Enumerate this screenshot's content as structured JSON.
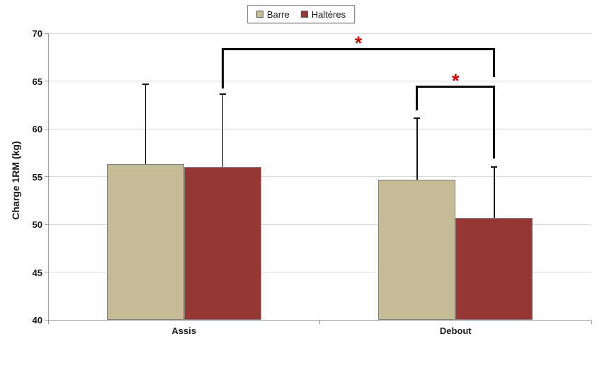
{
  "chart_data": {
    "type": "bar",
    "title": "",
    "categories": [
      "Assis",
      "Debout"
    ],
    "series": [
      {
        "name": "Barre",
        "color": "#C4BD97",
        "values": [
          56.3,
          54.7
        ],
        "error_up": [
          8.4,
          6.4
        ]
      },
      {
        "name": "Haltères",
        "color": "#953735",
        "values": [
          56.0,
          50.7
        ],
        "error_up": [
          7.6,
          5.3
        ]
      }
    ],
    "xlabel": "",
    "ylabel": "Charge 1RM (kg)",
    "ylim": [
      40,
      70
    ],
    "ytick_step": 5,
    "yticks": [
      40,
      45,
      50,
      55,
      60,
      65,
      70
    ],
    "grid": true,
    "legend_position": "top-center",
    "annotations": {
      "asterisk_color": "#C00000",
      "significance_brackets": [
        {
          "label": "*",
          "from": {
            "category": "Assis",
            "series": "Haltères"
          },
          "to": {
            "category": "Debout",
            "series": "Haltères"
          },
          "top_kg": 68.3,
          "left_leg_to_kg": 64.2,
          "right_leg_to_kg": 65.4
        },
        {
          "label": "*",
          "from": {
            "category": "Debout",
            "series": "Barre"
          },
          "to": {
            "category": "Debout",
            "series": "Haltères"
          },
          "top_kg": 64.4,
          "left_leg_to_kg": 61.9,
          "right_leg_to_kg": 56.9
        }
      ]
    }
  }
}
